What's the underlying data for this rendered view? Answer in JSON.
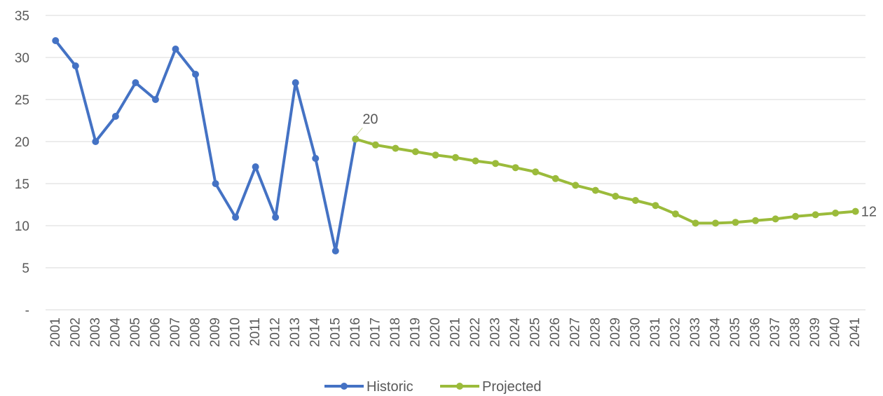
{
  "chart_data": {
    "type": "line",
    "x": [
      "2001",
      "2002",
      "2003",
      "2004",
      "2005",
      "2006",
      "2007",
      "2008",
      "2009",
      "2010",
      "2011",
      "2012",
      "2013",
      "2014",
      "2015",
      "2016",
      "2017",
      "2018",
      "2019",
      "2020",
      "2021",
      "2022",
      "2023",
      "2024",
      "2025",
      "2026",
      "2027",
      "2028",
      "2029",
      "2030",
      "2031",
      "2032",
      "2033",
      "2034",
      "2035",
      "2036",
      "2037",
      "2038",
      "2039",
      "2040",
      "2041"
    ],
    "y_ticks": [
      "-",
      "5",
      "10",
      "15",
      "20",
      "25",
      "30",
      "35"
    ],
    "ylim": [
      0,
      35
    ],
    "grid": true,
    "legend_position": "bottom",
    "series": [
      {
        "name": "Historic",
        "color": "#4472C4",
        "values": [
          32,
          29,
          20,
          23,
          27,
          25,
          31,
          28,
          15,
          11,
          17,
          11,
          27,
          18,
          7,
          20.3,
          null,
          null,
          null,
          null,
          null,
          null,
          null,
          null,
          null,
          null,
          null,
          null,
          null,
          null,
          null,
          null,
          null,
          null,
          null,
          null,
          null,
          null,
          null,
          null,
          null
        ]
      },
      {
        "name": "Projected",
        "color": "#9BBB3B",
        "values": [
          null,
          null,
          null,
          null,
          null,
          null,
          null,
          null,
          null,
          null,
          null,
          null,
          null,
          null,
          null,
          20.3,
          19.6,
          19.2,
          18.8,
          18.4,
          18.1,
          17.7,
          17.4,
          16.9,
          16.4,
          15.6,
          14.8,
          14.2,
          13.5,
          13.0,
          12.4,
          11.4,
          10.3,
          10.3,
          10.4,
          10.6,
          10.8,
          11.1,
          11.3,
          11.5,
          11.7
        ]
      }
    ],
    "data_labels": [
      {
        "series": "Projected",
        "x": "2016",
        "text": "20"
      },
      {
        "series": "Projected",
        "x": "2041",
        "text": "12"
      }
    ]
  }
}
